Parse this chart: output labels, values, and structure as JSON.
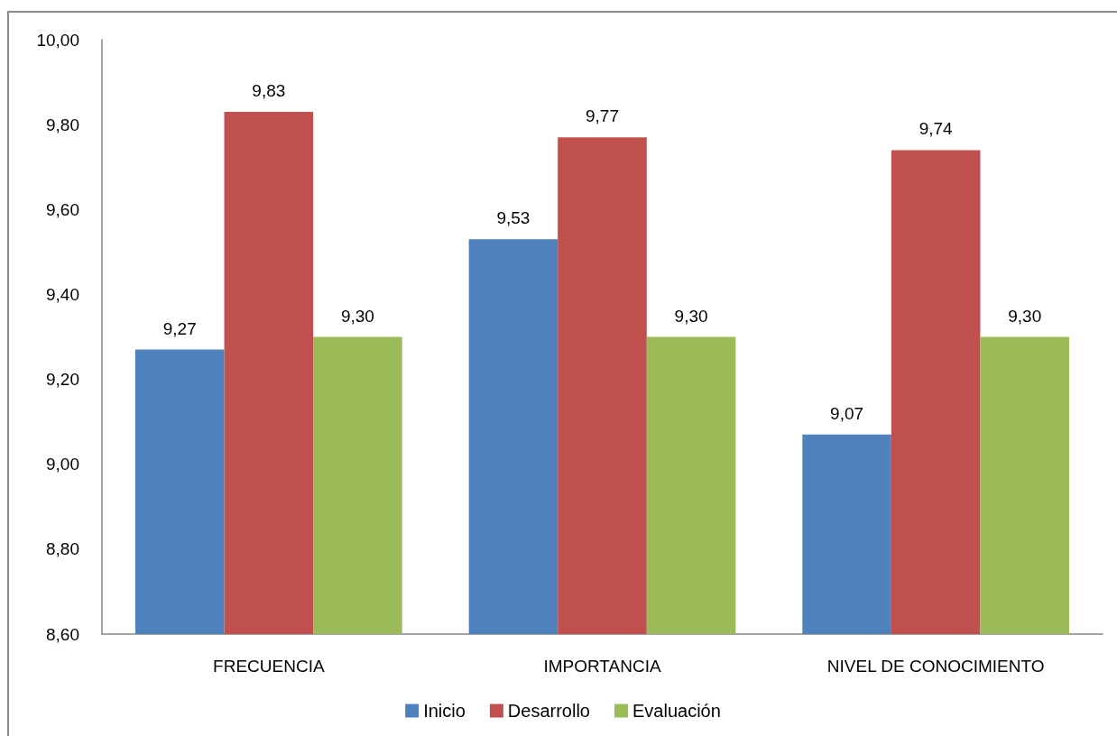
{
  "chart_data": {
    "type": "bar",
    "categories": [
      "FRECUENCIA",
      "IMPORTANCIA",
      "NIVEL DE CONOCIMIENTO"
    ],
    "series": [
      {
        "name": "Inicio",
        "color": "#4f81bd",
        "values": [
          9.27,
          9.53,
          9.07
        ],
        "value_labels": [
          "9,27",
          "9,53",
          "9,07"
        ]
      },
      {
        "name": "Desarrollo",
        "color": "#c0504d",
        "values": [
          9.83,
          9.77,
          9.74
        ],
        "value_labels": [
          "9,83",
          "9,77",
          "9,74"
        ]
      },
      {
        "name": "Evaluación",
        "color": "#9bbb59",
        "values": [
          9.3,
          9.3,
          9.3
        ],
        "value_labels": [
          "9,30",
          "9,30",
          "9,30"
        ]
      }
    ],
    "ylim": [
      8.6,
      10
    ],
    "yticks": [
      {
        "value": 8.6,
        "label": "8,60"
      },
      {
        "value": 8.8,
        "label": "8,80"
      },
      {
        "value": 9,
        "label": "9,00"
      },
      {
        "value": 9.2,
        "label": "9,20"
      },
      {
        "value": 9.4,
        "label": "9,40"
      },
      {
        "value": 9.6,
        "label": "9,60"
      },
      {
        "value": 9.8,
        "label": "9,80"
      },
      {
        "value": 10,
        "label": "10,00"
      }
    ],
    "legend": "bottom"
  }
}
